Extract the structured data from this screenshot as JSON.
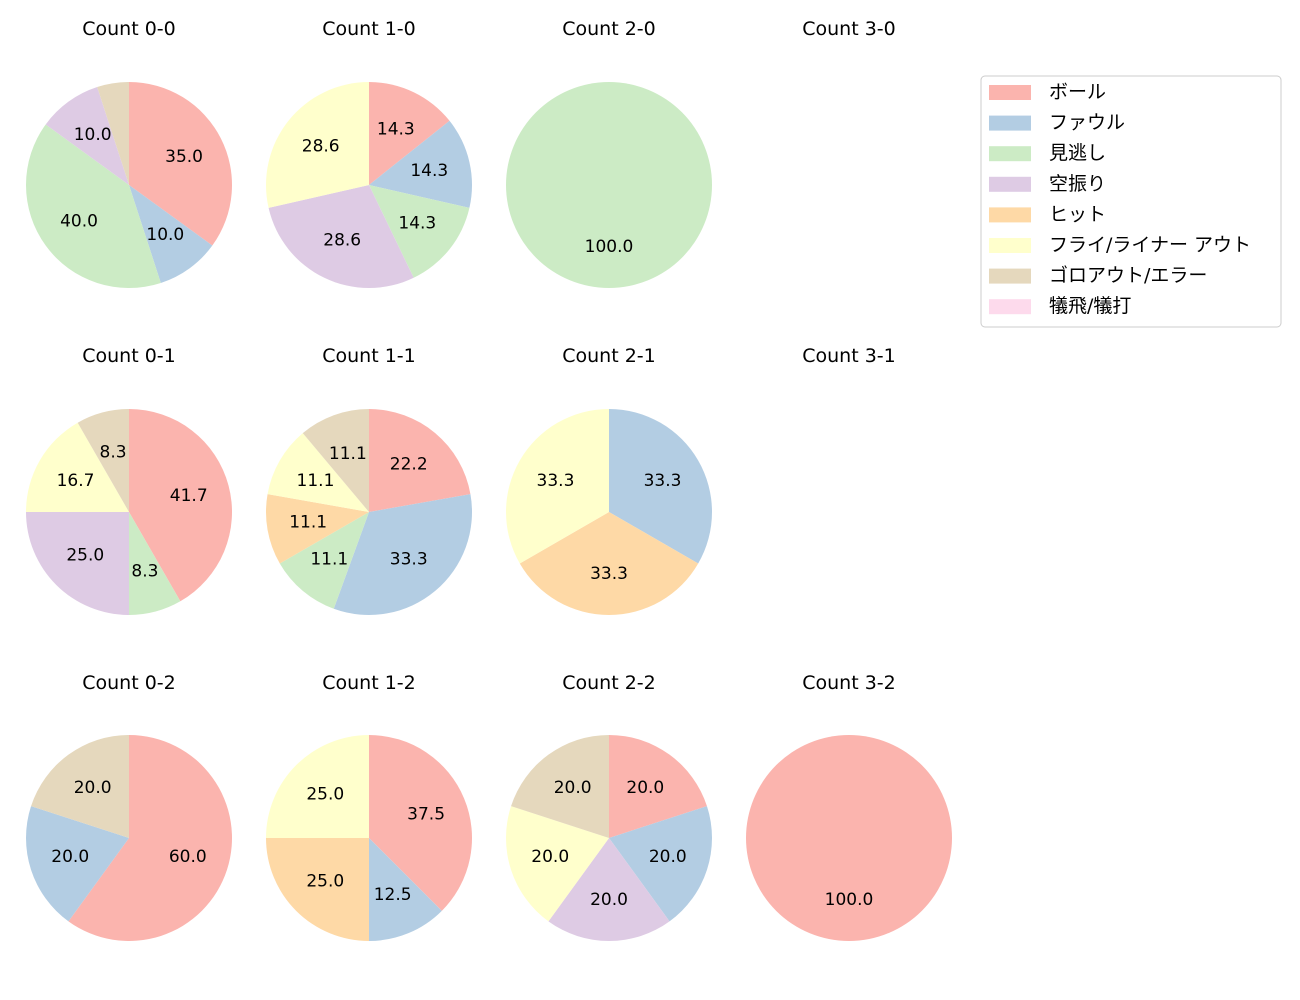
{
  "chart_data": {
    "type": "pie",
    "categories": [
      "ボール",
      "ファウル",
      "見逃し",
      "空振り",
      "ヒット",
      "フライ/ライナー アウト",
      "ゴロアウト/エラー",
      "犠飛/犠打"
    ],
    "colors": [
      "#fbb4ae",
      "#b3cde3",
      "#ccebc5",
      "#decbe4",
      "#fed9a6",
      "#ffffcc",
      "#e5d8bd",
      "#fddaec"
    ],
    "legend_position": "top-right",
    "start_angle": 90,
    "direction": "clockwise",
    "charts": [
      {
        "title": "Count 0-0",
        "values": [
          35.0,
          10.0,
          40.0,
          10.0,
          0,
          0,
          5.0,
          0
        ]
      },
      {
        "title": "Count 1-0",
        "values": [
          14.3,
          14.3,
          14.3,
          28.6,
          0,
          28.6,
          0,
          0
        ]
      },
      {
        "title": "Count 2-0",
        "values": [
          0,
          0,
          100.0,
          0,
          0,
          0,
          0,
          0
        ]
      },
      {
        "title": "Count 3-0",
        "values": []
      },
      {
        "title": "Count 0-1",
        "values": [
          41.7,
          0,
          8.3,
          25.0,
          0,
          16.7,
          8.3,
          0
        ]
      },
      {
        "title": "Count 1-1",
        "values": [
          22.2,
          33.3,
          11.1,
          0,
          11.1,
          11.1,
          11.1,
          0
        ]
      },
      {
        "title": "Count 2-1",
        "values": [
          0,
          33.3,
          0,
          0,
          33.3,
          33.3,
          0,
          0
        ]
      },
      {
        "title": "Count 3-1",
        "values": []
      },
      {
        "title": "Count 0-2",
        "values": [
          60.0,
          20.0,
          0,
          0,
          0,
          0,
          20.0,
          0
        ]
      },
      {
        "title": "Count 1-2",
        "values": [
          37.5,
          12.5,
          0,
          0,
          25.0,
          25.0,
          0,
          0
        ]
      },
      {
        "title": "Count 2-2",
        "values": [
          20.0,
          20.0,
          0,
          20.0,
          0,
          20.0,
          20.0,
          0
        ]
      },
      {
        "title": "Count 3-2",
        "values": [
          100.0,
          0,
          0,
          0,
          0,
          0,
          0,
          0
        ]
      }
    ]
  }
}
